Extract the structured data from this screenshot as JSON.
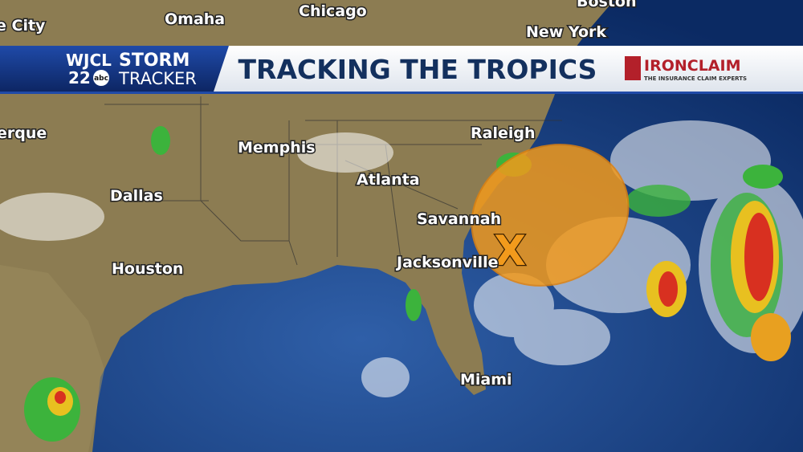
{
  "banner": {
    "station": "WJCL",
    "channel": "22",
    "network": "abc",
    "brand_top": "STORM",
    "brand_bottom": "TRACKER",
    "title": "TRACKING THE TROPICS",
    "sponsor": "IRONCLAIM",
    "sponsor_tagline": "THE INSURANCE CLAIM EXPERTS"
  },
  "map": {
    "cities": [
      "e City",
      "Omaha",
      "Chicago",
      "Boston",
      "New York",
      "erque",
      "Raleigh",
      "Memphis",
      "Atlanta",
      "Dallas",
      "Savannah",
      "Jacksonville",
      "Houston",
      "Miami"
    ],
    "marker": "X"
  }
}
